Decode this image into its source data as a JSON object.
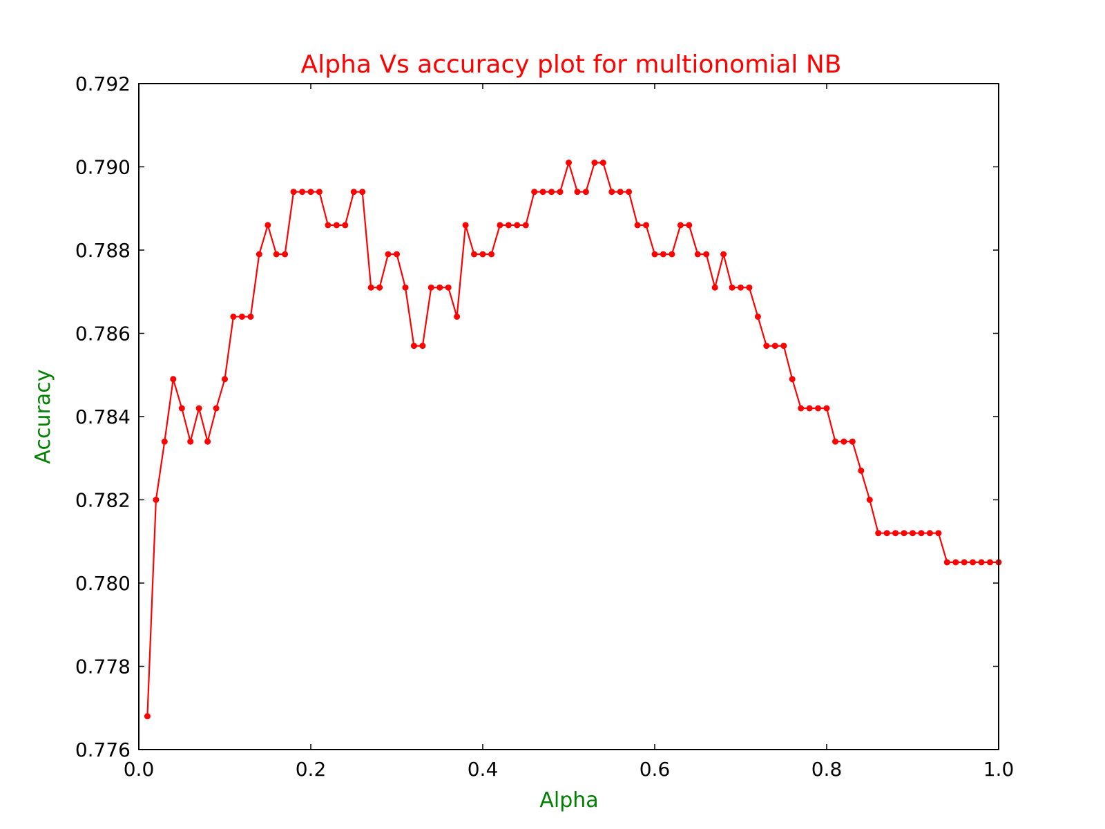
{
  "chart_data": {
    "type": "line",
    "title": "Alpha Vs accuracy plot for multionomial NB",
    "xlabel": "Alpha",
    "ylabel": "Accuracy",
    "xlim": [
      0.0,
      1.0
    ],
    "ylim": [
      0.776,
      0.792
    ],
    "xticks": [
      "0.0",
      "0.2",
      "0.4",
      "0.6",
      "0.8",
      "1.0"
    ],
    "yticks": [
      "0.776",
      "0.778",
      "0.780",
      "0.782",
      "0.784",
      "0.786",
      "0.788",
      "0.790",
      "0.792"
    ],
    "grid": false,
    "legend": "none",
    "colors": {
      "line": "#ff0000",
      "title": "#ff0000",
      "axis_label": "#008000",
      "axes": "#000000"
    },
    "series": [
      {
        "x": [
          0.01,
          0.02,
          0.03,
          0.04,
          0.05,
          0.06,
          0.07,
          0.08,
          0.09,
          0.1,
          0.11,
          0.12,
          0.13,
          0.14,
          0.15,
          0.16,
          0.17,
          0.18,
          0.19,
          0.2,
          0.21,
          0.22,
          0.23,
          0.24,
          0.25,
          0.26,
          0.27,
          0.28,
          0.29,
          0.3,
          0.31,
          0.32,
          0.33,
          0.34,
          0.35,
          0.36,
          0.37,
          0.38,
          0.39,
          0.4,
          0.41,
          0.42,
          0.43,
          0.44,
          0.45,
          0.46,
          0.47,
          0.48,
          0.49,
          0.5,
          0.51,
          0.52,
          0.53,
          0.54,
          0.55,
          0.56,
          0.57,
          0.58,
          0.59,
          0.6,
          0.61,
          0.62,
          0.63,
          0.64,
          0.65,
          0.66,
          0.67,
          0.68,
          0.69,
          0.7,
          0.71,
          0.72,
          0.73,
          0.74,
          0.75,
          0.76,
          0.77,
          0.78,
          0.79,
          0.8,
          0.81,
          0.82,
          0.83,
          0.84,
          0.85,
          0.86,
          0.87,
          0.88,
          0.89,
          0.9,
          0.91,
          0.92,
          0.93,
          0.94,
          0.95,
          0.96,
          0.97,
          0.98,
          0.99,
          1.0
        ],
        "y": [
          0.7768,
          0.782,
          0.7834,
          0.7849,
          0.7842,
          0.7834,
          0.7842,
          0.7834,
          0.7842,
          0.7849,
          0.7864,
          0.7864,
          0.7864,
          0.7879,
          0.7886,
          0.7879,
          0.7879,
          0.7894,
          0.7894,
          0.7894,
          0.7894,
          0.7886,
          0.7886,
          0.7886,
          0.7894,
          0.7894,
          0.7871,
          0.7871,
          0.7879,
          0.7879,
          0.7871,
          0.7857,
          0.7857,
          0.7871,
          0.7871,
          0.7871,
          0.7864,
          0.7886,
          0.7879,
          0.7879,
          0.7879,
          0.7886,
          0.7886,
          0.7886,
          0.7886,
          0.7894,
          0.7894,
          0.7894,
          0.7894,
          0.7901,
          0.7894,
          0.7894,
          0.7901,
          0.7901,
          0.7894,
          0.7894,
          0.7894,
          0.7886,
          0.7886,
          0.7879,
          0.7879,
          0.7879,
          0.7886,
          0.7886,
          0.7879,
          0.7879,
          0.7871,
          0.7879,
          0.7871,
          0.7871,
          0.7871,
          0.7864,
          0.7857,
          0.7857,
          0.7857,
          0.7849,
          0.7842,
          0.7842,
          0.7842,
          0.7842,
          0.7834,
          0.7834,
          0.7834,
          0.7827,
          0.782,
          0.7812,
          0.7812,
          0.7812,
          0.7812,
          0.7812,
          0.7812,
          0.7812,
          0.7812,
          0.7805,
          0.7805,
          0.7805,
          0.7805,
          0.7805,
          0.7805,
          0.7805
        ]
      }
    ]
  }
}
